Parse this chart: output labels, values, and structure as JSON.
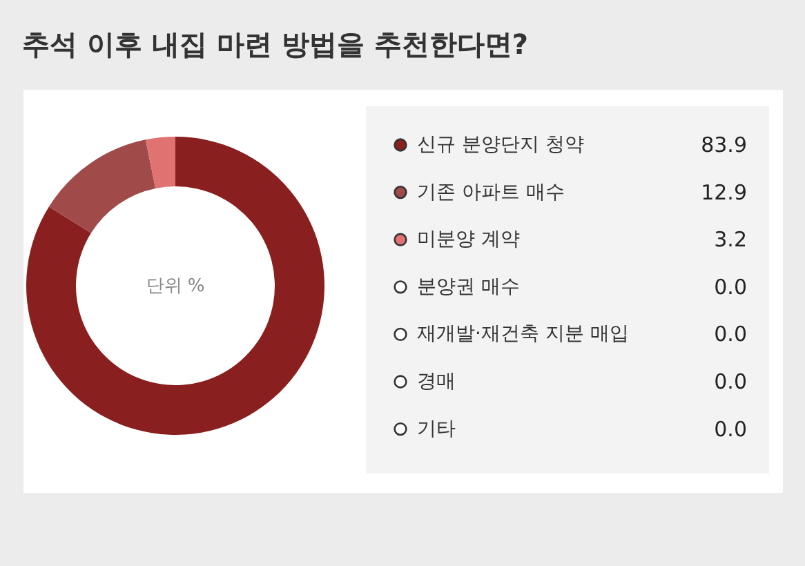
{
  "chart_data": {
    "type": "donut",
    "title": "추석 이후 내집 마련 방법을 추천한다면?",
    "categories": [
      "신규 분양단지 청약",
      "기존 아파트 매수",
      "미분양 계약",
      "분양권 매수",
      "재개발·재건축 지분 매입",
      "경매",
      "기타"
    ],
    "values": [
      83.9,
      12.9,
      3.2,
      0.0,
      0.0,
      0.0,
      0.0
    ],
    "colors": [
      "#8a1f1f",
      "#a04a4a",
      "#e07272",
      "#ffffff",
      "#ffffff",
      "#ffffff",
      "#ffffff"
    ],
    "annotations": [
      "단위 %"
    ],
    "value_labels": [
      "83.9",
      "12.9",
      "3.2",
      "0.0",
      "0.0",
      "0.0",
      "0.0"
    ],
    "legend": "right"
  }
}
